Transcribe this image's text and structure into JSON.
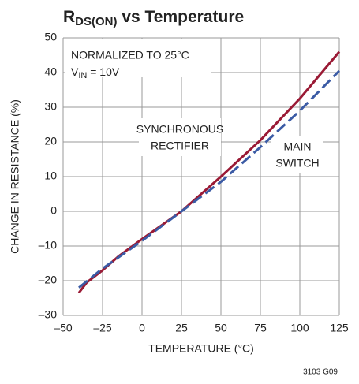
{
  "chart_data": {
    "type": "line",
    "title": {
      "main": "R",
      "sub": "DS(ON)",
      "rest": " vs Temperature"
    },
    "xlabel": "TEMPERATURE (°C)",
    "ylabel": "CHANGE IN RESISTANCE (%)",
    "annotations": {
      "note1": "NORMALIZED TO 25°C",
      "note2": {
        "main": "V",
        "sub": "IN",
        "rest": " = 10V"
      },
      "label1": [
        "SYNCHRONOUS",
        "RECTIFIER"
      ],
      "label2": [
        "MAIN",
        "SWITCH"
      ],
      "code": "3103 G09"
    },
    "xlim": [
      -50,
      125
    ],
    "xticks": [
      {
        "value": -50,
        "label": "–50"
      },
      {
        "value": -25,
        "label": "–25"
      },
      0,
      25,
      50,
      75,
      100,
      125
    ],
    "ylim": [
      -30,
      50
    ],
    "yticks": [
      {
        "value": -30,
        "label": "–30"
      },
      {
        "value": -20,
        "label": "–20"
      },
      {
        "value": -10,
        "label": "–10"
      },
      0,
      10,
      20,
      30,
      40,
      50
    ],
    "grid": true,
    "series": [
      {
        "color": "#9a1a35",
        "dash": false,
        "x": [
          -40,
          -35,
          -25,
          -15,
          0,
          25,
          50,
          75,
          100,
          125
        ],
        "values": [
          -23.5,
          -20.5,
          -17,
          -13,
          -8,
          0,
          10,
          20.5,
          32.5,
          46
        ]
      },
      {
        "color": "#3b5ba5",
        "dash": true,
        "x": [
          -40,
          -25,
          0,
          25,
          50,
          75,
          100,
          125
        ],
        "values": [
          -22,
          -16.5,
          -8.5,
          0,
          8.5,
          18.5,
          29,
          40.5
        ]
      }
    ]
  }
}
